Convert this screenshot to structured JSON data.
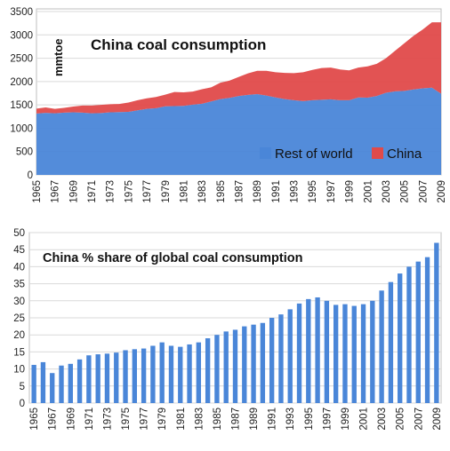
{
  "chart_data": [
    {
      "type": "area",
      "stacked": true,
      "title": "China coal consumption",
      "ylabel": "mmtoe",
      "xlabel": "",
      "ylim": [
        0,
        3500
      ],
      "yticks": [
        "0",
        "500",
        "1000",
        "1500",
        "2000",
        "2500",
        "3000",
        "3500"
      ],
      "x": [
        1965,
        1966,
        1967,
        1968,
        1969,
        1970,
        1971,
        1972,
        1973,
        1974,
        1975,
        1976,
        1977,
        1978,
        1979,
        1980,
        1981,
        1982,
        1983,
        1984,
        1985,
        1986,
        1987,
        1988,
        1989,
        1990,
        1991,
        1992,
        1993,
        1994,
        1995,
        1996,
        1997,
        1998,
        1999,
        2000,
        2001,
        2002,
        2003,
        2004,
        2005,
        2006,
        2007,
        2008,
        2009
      ],
      "xtick_labels": [
        "1965",
        "1967",
        "1969",
        "1971",
        "1973",
        "1975",
        "1977",
        "1979",
        "1981",
        "1983",
        "1985",
        "1987",
        "1989",
        "1991",
        "1993",
        "1995",
        "1997",
        "1999",
        "2001",
        "2003",
        "2005",
        "2007",
        "2009"
      ],
      "legend_position": "bottom-right",
      "grid": true,
      "series": [
        {
          "name": "Rest of world",
          "color": "#4a86d8",
          "values": [
            1315,
            1330,
            1320,
            1335,
            1340,
            1335,
            1320,
            1325,
            1340,
            1345,
            1350,
            1385,
            1415,
            1430,
            1470,
            1475,
            1480,
            1505,
            1525,
            1575,
            1625,
            1650,
            1690,
            1715,
            1730,
            1700,
            1660,
            1625,
            1600,
            1580,
            1600,
            1610,
            1620,
            1600,
            1600,
            1660,
            1655,
            1690,
            1760,
            1790,
            1800,
            1830,
            1855,
            1870,
            1740
          ]
        },
        {
          "name": "China",
          "color": "#e04a4a",
          "values": [
            105,
            115,
            95,
            100,
            125,
            150,
            165,
            175,
            175,
            175,
            200,
            215,
            225,
            240,
            250,
            300,
            290,
            280,
            310,
            300,
            350,
            370,
            410,
            460,
            500,
            530,
            540,
            560,
            580,
            620,
            650,
            680,
            680,
            660,
            640,
            640,
            670,
            690,
            740,
            870,
            1020,
            1150,
            1260,
            1400,
            1530
          ]
        }
      ]
    },
    {
      "type": "bar",
      "title": "China % share of global coal consumption",
      "xlabel": "",
      "ylabel": "",
      "ylim": [
        0,
        50
      ],
      "yticks": [
        "0",
        "5",
        "10",
        "15",
        "20",
        "25",
        "30",
        "35",
        "40",
        "45",
        "50"
      ],
      "grid": true,
      "categories": [
        1965,
        1966,
        1967,
        1968,
        1969,
        1970,
        1971,
        1972,
        1973,
        1974,
        1975,
        1976,
        1977,
        1978,
        1979,
        1980,
        1981,
        1982,
        1983,
        1984,
        1985,
        1986,
        1987,
        1988,
        1989,
        1990,
        1991,
        1992,
        1993,
        1994,
        1995,
        1996,
        1997,
        1998,
        1999,
        2000,
        2001,
        2002,
        2003,
        2004,
        2005,
        2006,
        2007,
        2008,
        2009
      ],
      "xtick_labels": [
        "1965",
        "1967",
        "1969",
        "1971",
        "1973",
        "1975",
        "1977",
        "1979",
        "1981",
        "1983",
        "1985",
        "1987",
        "1989",
        "1991",
        "1993",
        "1995",
        "1997",
        "1999",
        "2001",
        "2003",
        "2005",
        "2007",
        "2009"
      ],
      "color": "#4a86d8",
      "values": [
        11.2,
        12,
        8.8,
        11,
        11.5,
        12.8,
        14,
        14.3,
        14.5,
        14.8,
        15.5,
        15.8,
        16,
        16.8,
        17.8,
        16.8,
        16.5,
        17.2,
        17.8,
        19,
        20,
        21,
        21.5,
        22.5,
        23,
        23.5,
        25,
        26,
        27.5,
        29.2,
        30.5,
        31,
        30,
        28.8,
        29,
        28.5,
        29,
        30,
        33,
        35.5,
        38,
        40,
        41.5,
        42.8,
        47
      ]
    }
  ]
}
